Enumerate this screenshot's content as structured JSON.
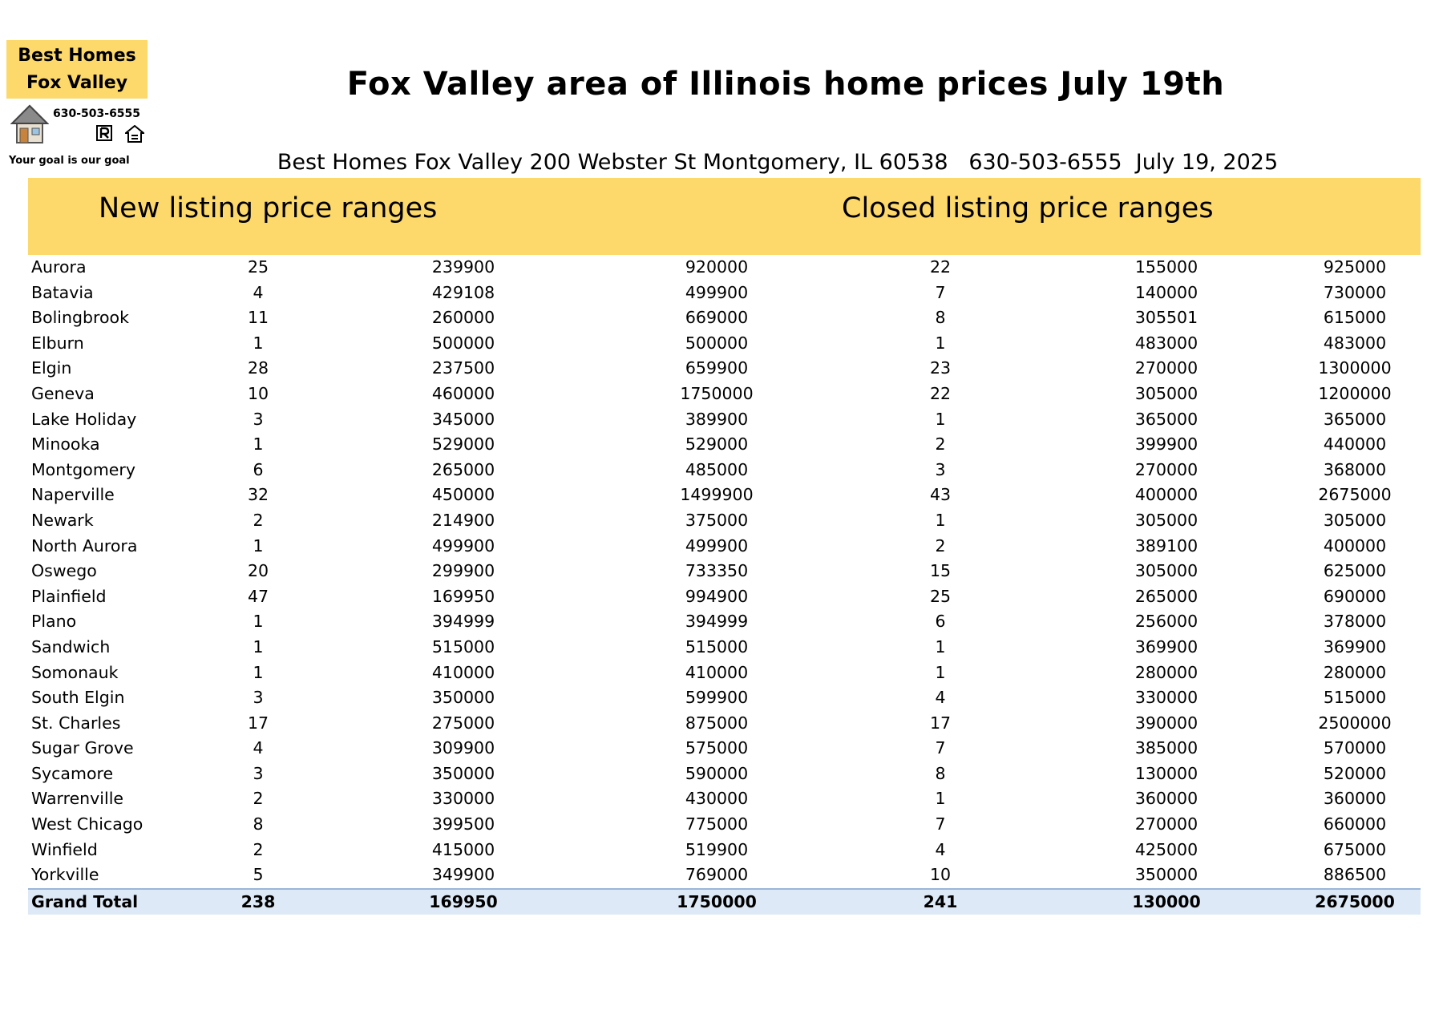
{
  "logo": {
    "line1": "Best Homes",
    "line2": "Fox Valley",
    "phone": "630-503-6555",
    "tagline": "Your goal is our goal",
    "icons": [
      "house-icon",
      "realtor-icon",
      "equal-housing-icon"
    ]
  },
  "title": "Fox Valley area of Illinois home prices July 19th",
  "subtitle": "Best Homes Fox Valley 200 Webster St Montgomery, IL 60538   630-503-6555  July 19, 2025",
  "band": {
    "new_label": "New listing price ranges",
    "closed_label": "Closed listing price ranges"
  },
  "colors": {
    "band": "#fdd96b",
    "total_row": "#dde9f6"
  },
  "rows": [
    {
      "city": "Aurora",
      "new_count": "25",
      "new_min": "239900",
      "new_max": "920000",
      "closed_count": "22",
      "closed_min": "155000",
      "closed_max": "925000"
    },
    {
      "city": "Batavia",
      "new_count": "4",
      "new_min": "429108",
      "new_max": "499900",
      "closed_count": "7",
      "closed_min": "140000",
      "closed_max": "730000"
    },
    {
      "city": "Bolingbrook",
      "new_count": "11",
      "new_min": "260000",
      "new_max": "669000",
      "closed_count": "8",
      "closed_min": "305501",
      "closed_max": "615000"
    },
    {
      "city": "Elburn",
      "new_count": "1",
      "new_min": "500000",
      "new_max": "500000",
      "closed_count": "1",
      "closed_min": "483000",
      "closed_max": "483000"
    },
    {
      "city": "Elgin",
      "new_count": "28",
      "new_min": "237500",
      "new_max": "659900",
      "closed_count": "23",
      "closed_min": "270000",
      "closed_max": "1300000"
    },
    {
      "city": "Geneva",
      "new_count": "10",
      "new_min": "460000",
      "new_max": "1750000",
      "closed_count": "22",
      "closed_min": "305000",
      "closed_max": "1200000"
    },
    {
      "city": "Lake Holiday",
      "new_count": "3",
      "new_min": "345000",
      "new_max": "389900",
      "closed_count": "1",
      "closed_min": "365000",
      "closed_max": "365000"
    },
    {
      "city": "Minooka",
      "new_count": "1",
      "new_min": "529000",
      "new_max": "529000",
      "closed_count": "2",
      "closed_min": "399900",
      "closed_max": "440000"
    },
    {
      "city": "Montgomery",
      "new_count": "6",
      "new_min": "265000",
      "new_max": "485000",
      "closed_count": "3",
      "closed_min": "270000",
      "closed_max": "368000"
    },
    {
      "city": "Naperville",
      "new_count": "32",
      "new_min": "450000",
      "new_max": "1499900",
      "closed_count": "43",
      "closed_min": "400000",
      "closed_max": "2675000"
    },
    {
      "city": "Newark",
      "new_count": "2",
      "new_min": "214900",
      "new_max": "375000",
      "closed_count": "1",
      "closed_min": "305000",
      "closed_max": "305000"
    },
    {
      "city": "North Aurora",
      "new_count": "1",
      "new_min": "499900",
      "new_max": "499900",
      "closed_count": "2",
      "closed_min": "389100",
      "closed_max": "400000"
    },
    {
      "city": "Oswego",
      "new_count": "20",
      "new_min": "299900",
      "new_max": "733350",
      "closed_count": "15",
      "closed_min": "305000",
      "closed_max": "625000"
    },
    {
      "city": "Plainfield",
      "new_count": "47",
      "new_min": "169950",
      "new_max": "994900",
      "closed_count": "25",
      "closed_min": "265000",
      "closed_max": "690000"
    },
    {
      "city": "Plano",
      "new_count": "1",
      "new_min": "394999",
      "new_max": "394999",
      "closed_count": "6",
      "closed_min": "256000",
      "closed_max": "378000"
    },
    {
      "city": "Sandwich",
      "new_count": "1",
      "new_min": "515000",
      "new_max": "515000",
      "closed_count": "1",
      "closed_min": "369900",
      "closed_max": "369900"
    },
    {
      "city": "Somonauk",
      "new_count": "1",
      "new_min": "410000",
      "new_max": "410000",
      "closed_count": "1",
      "closed_min": "280000",
      "closed_max": "280000"
    },
    {
      "city": "South Elgin",
      "new_count": "3",
      "new_min": "350000",
      "new_max": "599900",
      "closed_count": "4",
      "closed_min": "330000",
      "closed_max": "515000"
    },
    {
      "city": "St. Charles",
      "new_count": "17",
      "new_min": "275000",
      "new_max": "875000",
      "closed_count": "17",
      "closed_min": "390000",
      "closed_max": "2500000"
    },
    {
      "city": "Sugar Grove",
      "new_count": "4",
      "new_min": "309900",
      "new_max": "575000",
      "closed_count": "7",
      "closed_min": "385000",
      "closed_max": "570000"
    },
    {
      "city": "Sycamore",
      "new_count": "3",
      "new_min": "350000",
      "new_max": "590000",
      "closed_count": "8",
      "closed_min": "130000",
      "closed_max": "520000"
    },
    {
      "city": "Warrenville",
      "new_count": "2",
      "new_min": "330000",
      "new_max": "430000",
      "closed_count": "1",
      "closed_min": "360000",
      "closed_max": "360000"
    },
    {
      "city": "West Chicago",
      "new_count": "8",
      "new_min": "399500",
      "new_max": "775000",
      "closed_count": "7",
      "closed_min": "270000",
      "closed_max": "660000"
    },
    {
      "city": "Winfield",
      "new_count": "2",
      "new_min": "415000",
      "new_max": "519900",
      "closed_count": "4",
      "closed_min": "425000",
      "closed_max": "675000"
    },
    {
      "city": "Yorkville",
      "new_count": "5",
      "new_min": "349900",
      "new_max": "769000",
      "closed_count": "10",
      "closed_min": "350000",
      "closed_max": "886500"
    }
  ],
  "total": {
    "city": "Grand Total",
    "new_count": "238",
    "new_min": "169950",
    "new_max": "1750000",
    "closed_count": "241",
    "closed_min": "130000",
    "closed_max": "2675000"
  }
}
